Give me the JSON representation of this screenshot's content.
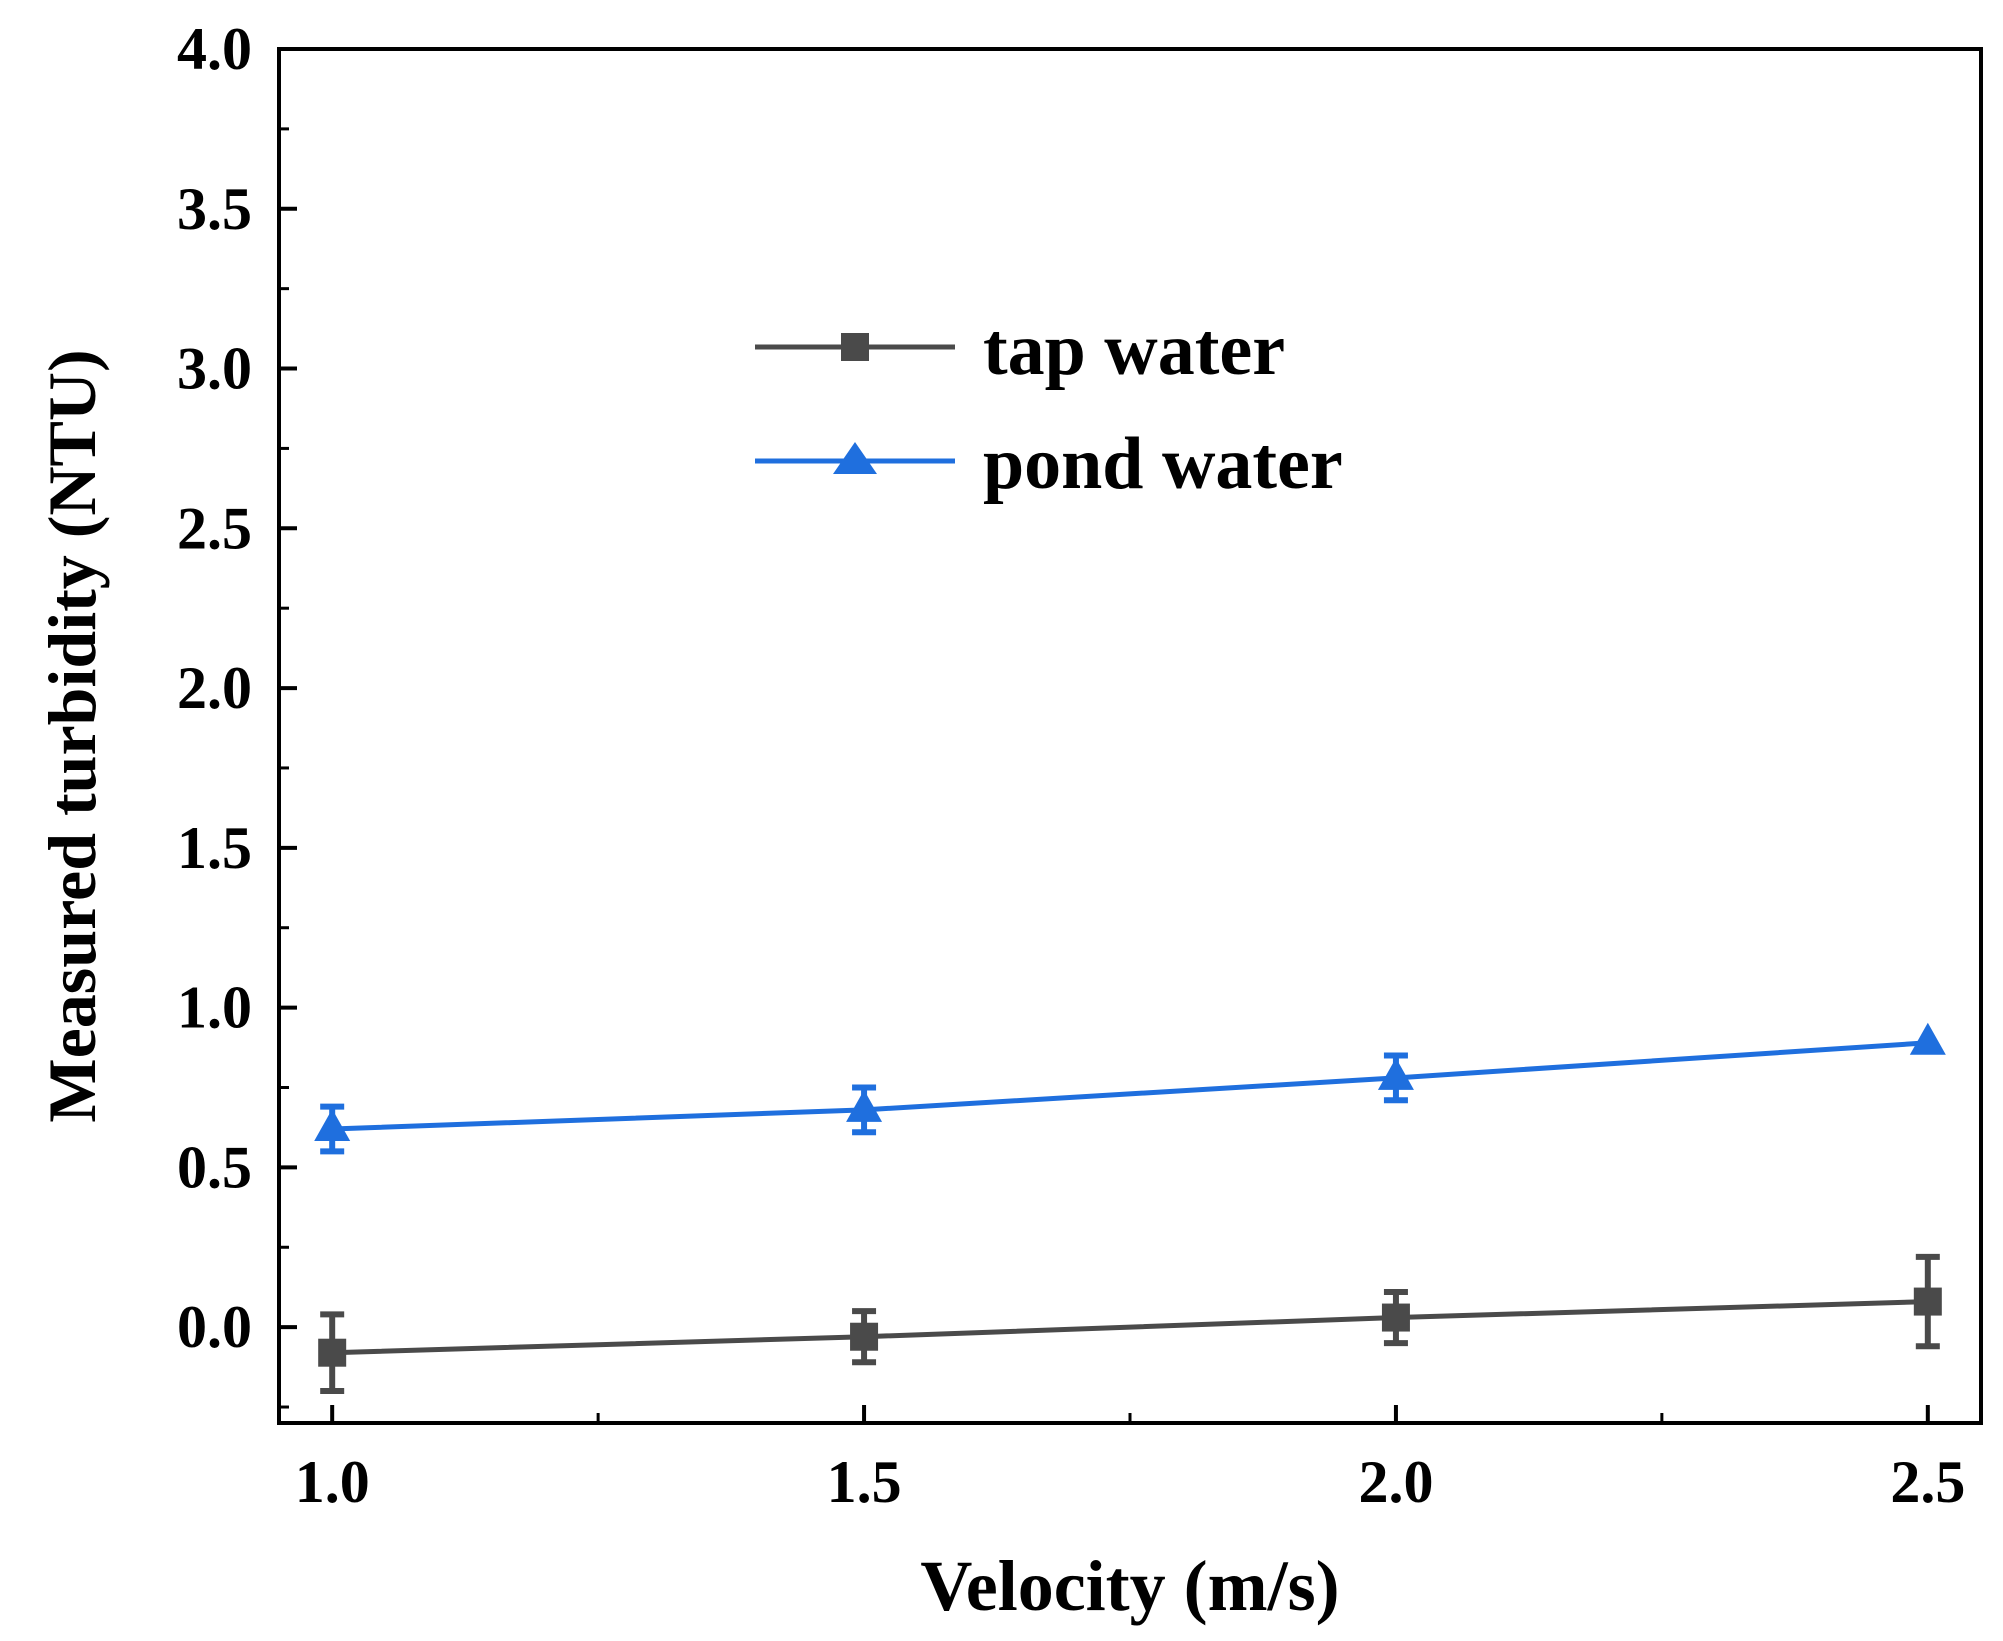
{
  "chart_data": {
    "type": "line",
    "xlabel": "Velocity (m/s)",
    "ylabel": "Measured turbidity (NTU)",
    "xlim": [
      0.95,
      2.55
    ],
    "ylim": [
      -0.3,
      4.0
    ],
    "x_ticks": [
      1.0,
      1.5,
      2.0,
      2.5
    ],
    "x_tick_labels": [
      "1.0",
      "1.5",
      "2.0",
      "2.5"
    ],
    "y_ticks": [
      0.0,
      0.5,
      1.0,
      1.5,
      2.0,
      2.5,
      3.0,
      3.5,
      4.0
    ],
    "y_tick_labels": [
      "0.0",
      "0.5",
      "1.0",
      "1.5",
      "2.0",
      "2.5",
      "3.0",
      "3.5",
      "4.0"
    ],
    "grid": false,
    "legend_position": "upper-center",
    "series": [
      {
        "name": "tap water",
        "color": "#4a4a4a",
        "marker": "square",
        "x": [
          1.0,
          1.5,
          2.0,
          2.5
        ],
        "y": [
          -0.08,
          -0.03,
          0.03,
          0.08
        ],
        "error": [
          0.12,
          0.08,
          0.08,
          0.14
        ]
      },
      {
        "name": "pond water",
        "color": "#1f6fde",
        "marker": "triangle",
        "x": [
          1.0,
          1.5,
          2.0,
          2.5
        ],
        "y": [
          0.62,
          0.68,
          0.78,
          0.89
        ],
        "error": [
          0.07,
          0.07,
          0.07,
          0.0
        ]
      }
    ]
  }
}
